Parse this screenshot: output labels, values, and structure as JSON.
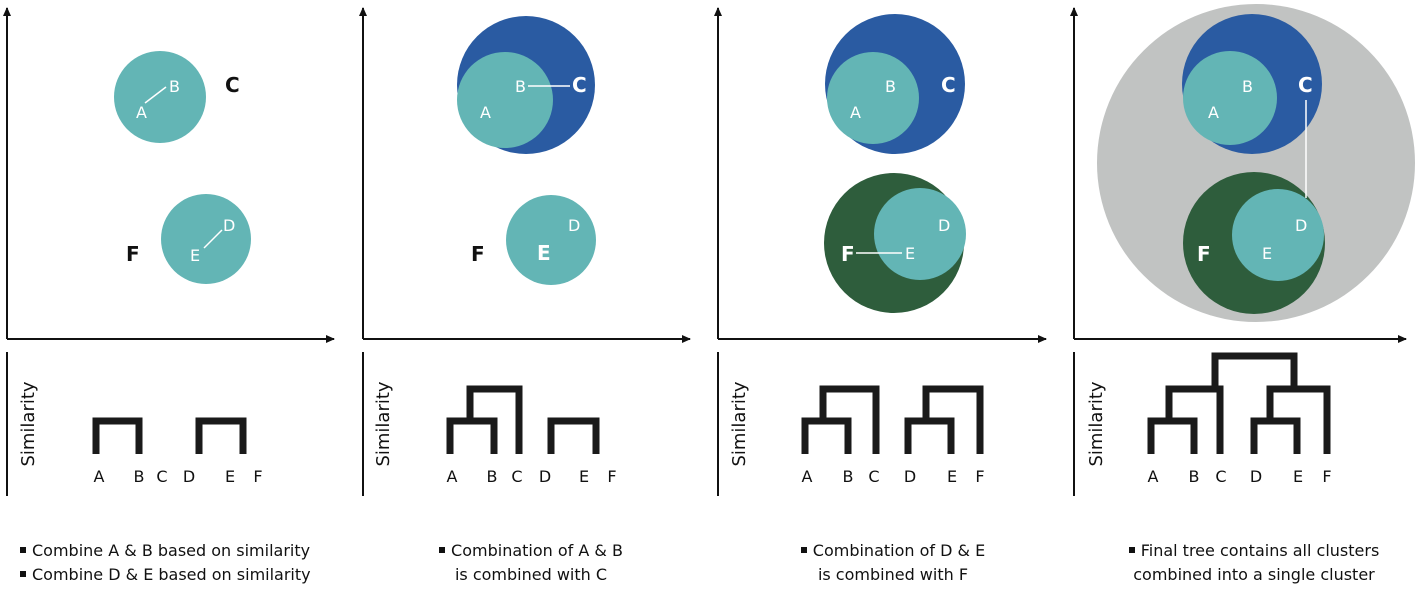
{
  "colors": {
    "teal": "#63b5b5",
    "blue": "#2a5ba2",
    "green": "#2e5d3c",
    "gray": "#c1c3c2",
    "axis": "#111111",
    "dendrogram": "#1a1a1a",
    "label_white": "#ffffff"
  },
  "axis_label": "Similarity",
  "panels": [
    {
      "scatter_labels": {
        "A": "A",
        "B": "B",
        "C": "C",
        "D": "D",
        "E": "E",
        "F": "F"
      },
      "dendrogram_leaves": [
        "A",
        "B",
        "C",
        "D",
        "E",
        "F"
      ],
      "caption": [
        "Combine A & B based on similarity",
        "Combine D & E based on similarity"
      ]
    },
    {
      "scatter_labels": {
        "A": "A",
        "B": "B",
        "C": "C",
        "D": "D",
        "E": "E",
        "F": "F"
      },
      "dendrogram_leaves": [
        "A",
        "B",
        "C",
        "D",
        "E",
        "F"
      ],
      "caption": [
        "Combination of A & B",
        "is combined with C"
      ]
    },
    {
      "scatter_labels": {
        "A": "A",
        "B": "B",
        "C": "C",
        "D": "D",
        "E": "E",
        "F": "F"
      },
      "dendrogram_leaves": [
        "A",
        "B",
        "C",
        "D",
        "E",
        "F"
      ],
      "caption": [
        "Combination of D & E",
        "is combined with F"
      ]
    },
    {
      "scatter_labels": {
        "A": "A",
        "B": "B",
        "C": "C",
        "D": "D",
        "E": "E",
        "F": "F"
      },
      "dendrogram_leaves": [
        "A",
        "B",
        "C",
        "D",
        "E",
        "F"
      ],
      "caption": [
        "Final tree contains all clusters",
        "combined into a single cluster"
      ]
    }
  ]
}
